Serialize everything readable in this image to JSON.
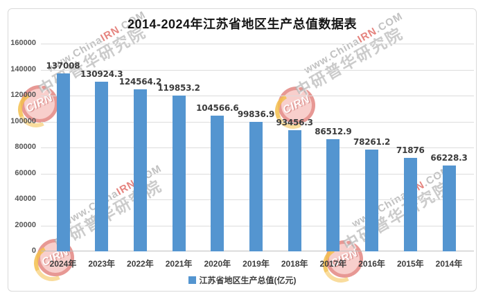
{
  "watermark": {
    "logo": "CIRN",
    "url_prefix": "www.China",
    "url_accent": "IRN",
    "url_suffix": ".COM",
    "org": "中研普华研究院"
  },
  "chart_data": {
    "type": "bar",
    "title": "2014-2024年江苏省地区生产总值数据表",
    "legend": "江苏省地区生产总值(亿元)",
    "legend_position": "bottom",
    "categories": [
      "2024年",
      "2023年",
      "2022年",
      "2021年",
      "2020年",
      "2019年",
      "2018年",
      "2017年",
      "2016年",
      "2015年",
      "2014年"
    ],
    "values": [
      137008,
      130924.3,
      124564.2,
      119853.2,
      104566.6,
      99836.9,
      93456.3,
      86512.9,
      78261.2,
      71876,
      66228.3
    ],
    "xlabel": "",
    "ylabel": "",
    "ylim": [
      0,
      160000
    ],
    "ytick_step": 20000,
    "grid": true,
    "bar_color": "#5495d0"
  }
}
